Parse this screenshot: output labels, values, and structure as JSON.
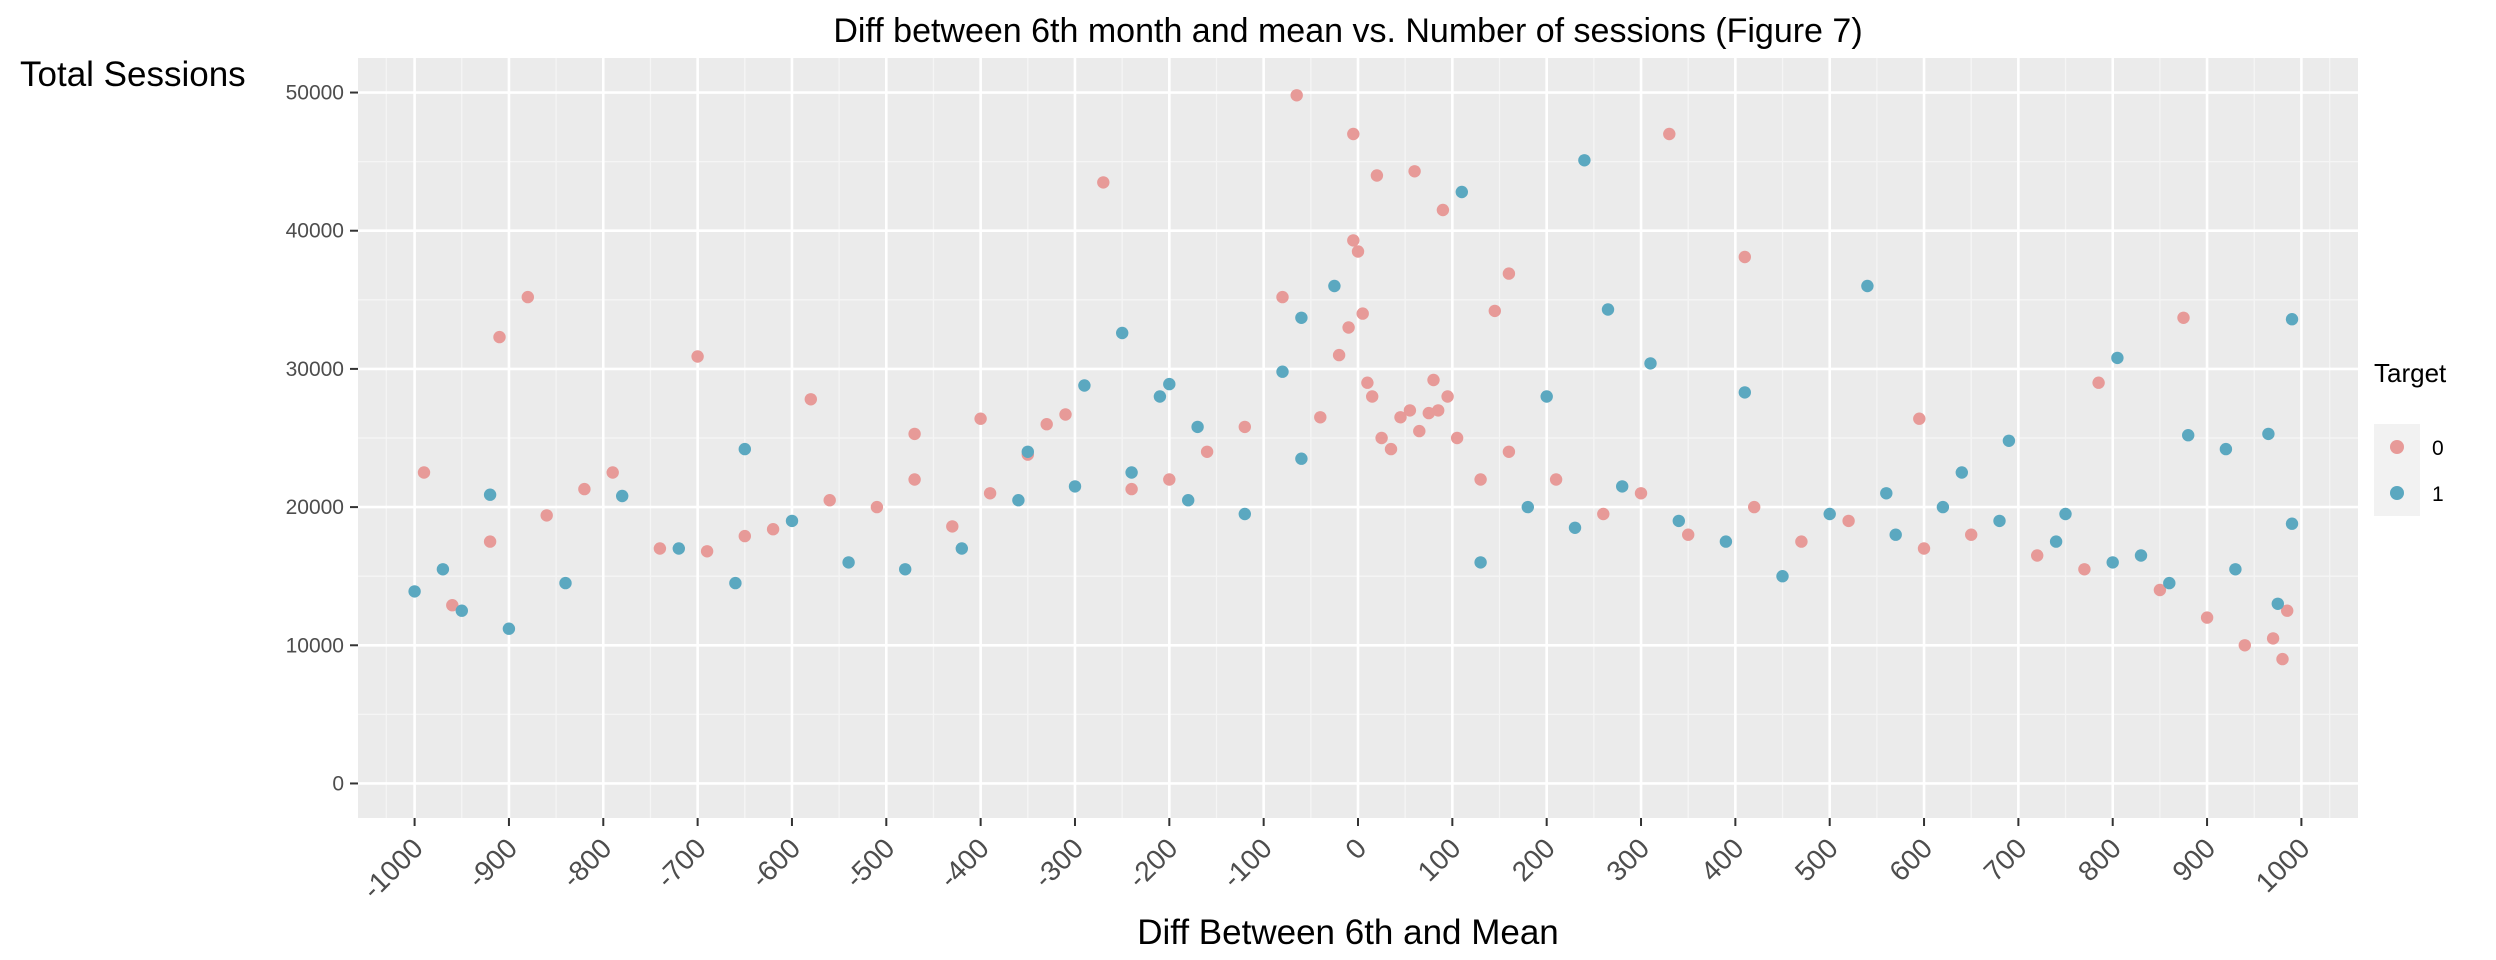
{
  "chart_data": {
    "type": "scatter",
    "title": "Diff between 6th month and mean vs. Number of sessions (Figure 7)",
    "xlabel": "Diff Between 6th and Mean",
    "ylabel": "Total Sessions",
    "xlim": [
      -1060,
      1060
    ],
    "ylim": [
      -2500,
      52500
    ],
    "x_ticks": [
      -1000,
      -900,
      -800,
      -700,
      -600,
      -500,
      -400,
      -300,
      -200,
      -100,
      0,
      100,
      200,
      300,
      400,
      500,
      600,
      700,
      800,
      900,
      1000
    ],
    "x_tick_labels": [
      "-1000",
      "-900",
      "-800",
      "-700",
      "-600",
      "-500",
      "-400",
      "-300",
      "-200",
      "-100",
      "0",
      "100",
      "200",
      "300",
      "400",
      "500",
      "600",
      "700",
      "800",
      "900",
      "1000"
    ],
    "y_ticks": [
      0,
      10000,
      20000,
      30000,
      40000,
      50000
    ],
    "y_tick_labels": [
      "0",
      "10000",
      "20000",
      "30000",
      "40000",
      "50000"
    ],
    "grid": true,
    "legend": {
      "title": "Target",
      "position": "right",
      "entries": [
        {
          "label": "0",
          "color": "#E79A98"
        },
        {
          "label": "1",
          "color": "#5BA8C0"
        }
      ]
    },
    "series": [
      {
        "name": "0",
        "color": "#E79A98",
        "x": [
          -65,
          -5,
          20,
          60,
          90,
          -270,
          -880,
          -910,
          -820,
          -700,
          -580,
          -470,
          -400,
          -330,
          145,
          160,
          410,
          330,
          595,
          785,
          875,
          970,
          985,
          -990,
          -960,
          -920,
          -860,
          -790,
          -740,
          -690,
          -650,
          -620,
          -560,
          -510,
          -470,
          -430,
          -390,
          -350,
          -310,
          -240,
          -200,
          -160,
          -120,
          -80,
          -40,
          -20,
          -10,
          -5,
          0,
          5,
          10,
          15,
          25,
          35,
          45,
          55,
          65,
          75,
          80,
          85,
          95,
          105,
          130,
          160,
          210,
          260,
          300,
          350,
          420,
          470,
          520,
          600,
          650,
          720,
          770,
          850,
          900,
          940,
          980
        ],
        "y": [
          49800,
          47000,
          44000,
          44300,
          41500,
          43500,
          35200,
          32300,
          21300,
          30900,
          27800,
          25300,
          26400,
          26000,
          34200,
          36900,
          38100,
          47000,
          26400,
          29000,
          33700,
          10500,
          12500,
          22500,
          12900,
          17500,
          19400,
          22500,
          17000,
          16800,
          17900,
          18400,
          20500,
          20000,
          22000,
          18600,
          21000,
          23800,
          26700,
          21300,
          22000,
          24000,
          25800,
          35200,
          26500,
          31000,
          33000,
          39300,
          38500,
          34000,
          29000,
          28000,
          25000,
          24200,
          26500,
          27000,
          25500,
          26800,
          29200,
          27000,
          28000,
          25000,
          22000,
          24000,
          22000,
          19500,
          21000,
          18000,
          20000,
          17500,
          19000,
          17000,
          18000,
          16500,
          15500,
          14000,
          12000,
          10000,
          9000
        ]
      },
      {
        "name": "1",
        "color": "#5BA8C0",
        "x": [
          240,
          265,
          540,
          110,
          990,
          310,
          805,
          965,
          920,
          880,
          -80,
          -60,
          -25,
          -170,
          -250,
          -200,
          -290,
          -650,
          -920,
          -970,
          -350,
          -210,
          200,
          410,
          690,
          560,
          640,
          750,
          830,
          990,
          -1000,
          -950,
          -900,
          -840,
          -780,
          -720,
          -660,
          -600,
          -540,
          -480,
          -420,
          -360,
          -300,
          -240,
          -180,
          -120,
          -60,
          130,
          180,
          230,
          280,
          340,
          390,
          450,
          500,
          570,
          620,
          680,
          740,
          800,
          860,
          930,
          975
        ],
        "y": [
          45100,
          34300,
          36000,
          42800,
          33600,
          30400,
          30800,
          25300,
          24200,
          25200,
          29800,
          33700,
          36000,
          25800,
          32600,
          28900,
          28800,
          24200,
          20900,
          15500,
          24000,
          28000,
          28000,
          28300,
          24800,
          21000,
          22500,
          19500,
          16500,
          18800,
          13900,
          12500,
          11200,
          14500,
          20800,
          17000,
          14500,
          19000,
          16000,
          15500,
          17000,
          20500,
          21500,
          22500,
          20500,
          19500,
          23500,
          16000,
          20000,
          18500,
          21500,
          19000,
          17500,
          15000,
          19500,
          18000,
          20000,
          19000,
          17500,
          16000,
          14500,
          15500,
          13000
        ]
      }
    ]
  }
}
